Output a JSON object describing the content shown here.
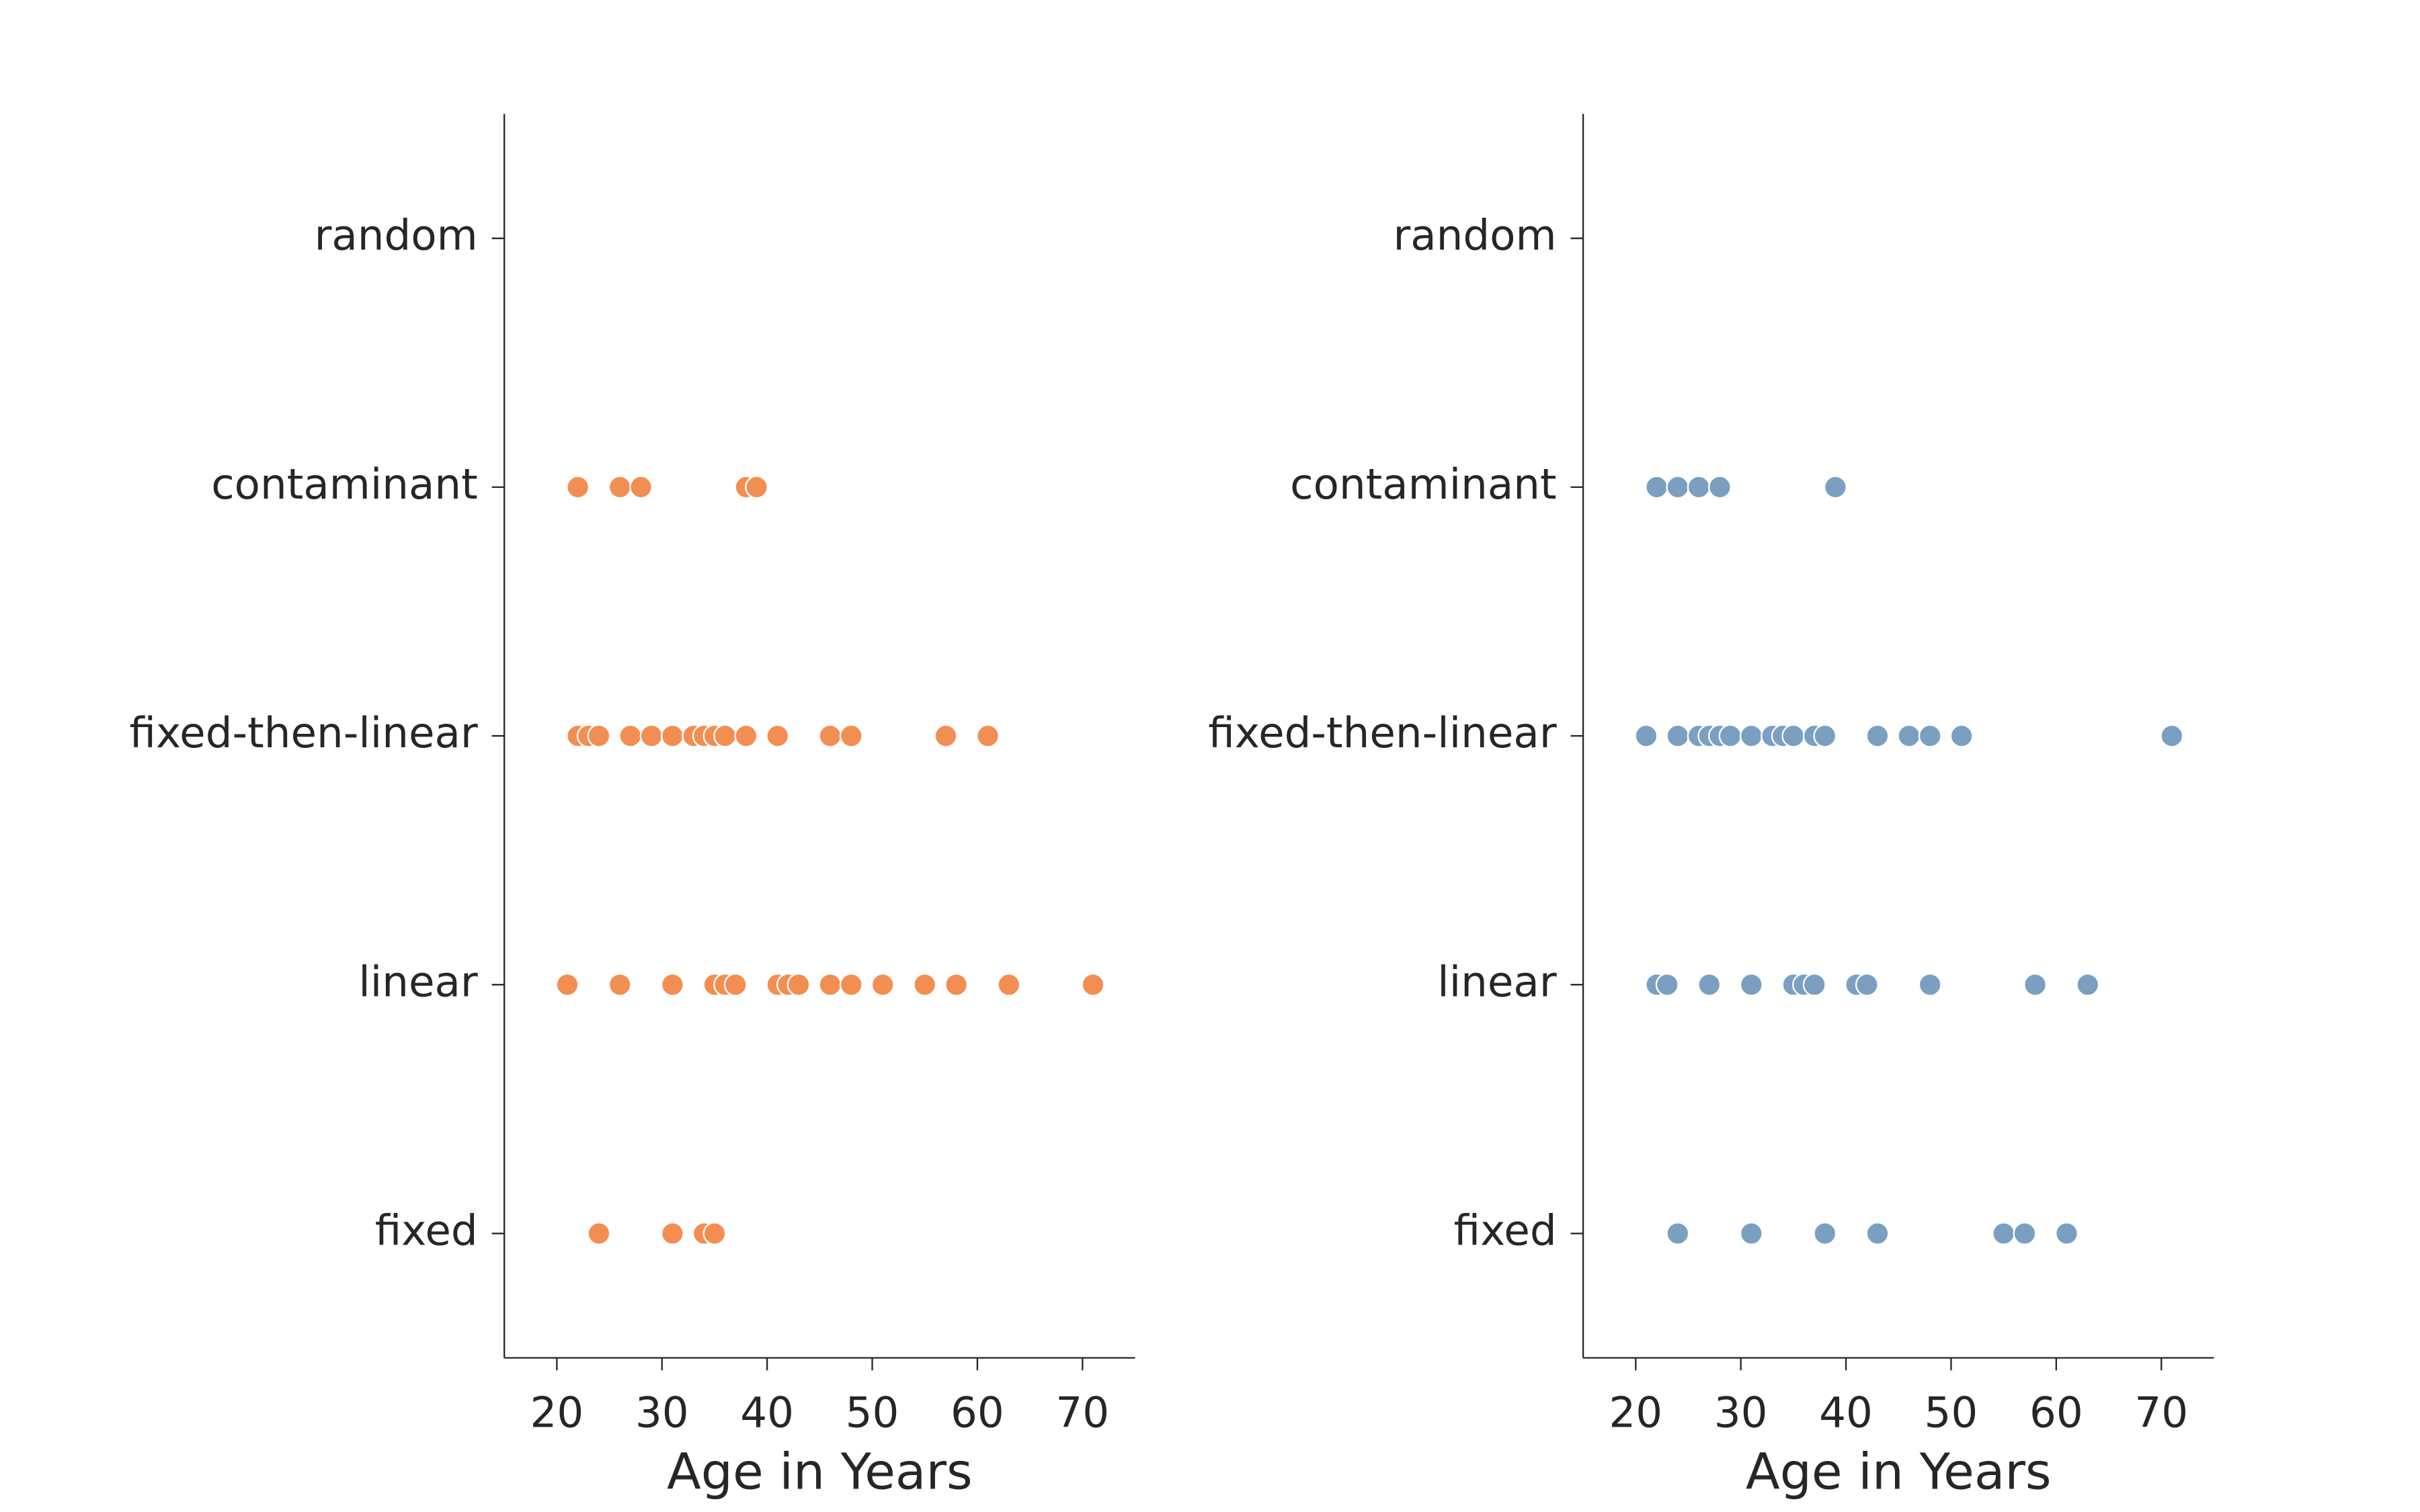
{
  "chart_data": [
    {
      "type": "scatter",
      "color": "#f28e52",
      "xlabel": "Age in Years",
      "categories": [
        "random",
        "contaminant",
        "fixed-then-linear",
        "linear",
        "fixed"
      ],
      "values": [
        [],
        [
          22,
          26,
          28,
          38,
          39
        ],
        [
          22,
          23,
          24,
          27,
          29,
          31,
          33,
          34,
          35,
          36,
          38,
          41,
          46,
          48,
          57,
          61
        ],
        [
          21,
          26,
          31,
          35,
          36,
          37,
          41,
          42,
          43,
          46,
          48,
          51,
          55,
          58,
          63,
          71
        ],
        [
          24,
          31,
          34,
          35
        ]
      ],
      "xlim": [
        15,
        75
      ],
      "xticks": [
        20,
        30,
        40,
        50,
        60,
        70
      ]
    },
    {
      "type": "scatter",
      "color": "#7b9fc1",
      "xlabel": "Age in Years",
      "categories": [
        "random",
        "contaminant",
        "fixed-then-linear",
        "linear",
        "fixed"
      ],
      "values": [
        [],
        [
          22,
          24,
          26,
          28,
          39
        ],
        [
          21,
          24,
          26,
          27,
          28,
          29,
          31,
          33,
          34,
          35,
          37,
          38,
          43,
          46,
          48,
          51,
          71
        ],
        [
          22,
          23,
          27,
          31,
          35,
          36,
          37,
          41,
          42,
          48,
          58,
          63
        ],
        [
          24,
          31,
          38,
          43,
          55,
          57,
          61
        ]
      ],
      "xlim": [
        15,
        75
      ],
      "xticks": [
        20,
        30,
        40,
        50,
        60,
        70
      ]
    }
  ]
}
